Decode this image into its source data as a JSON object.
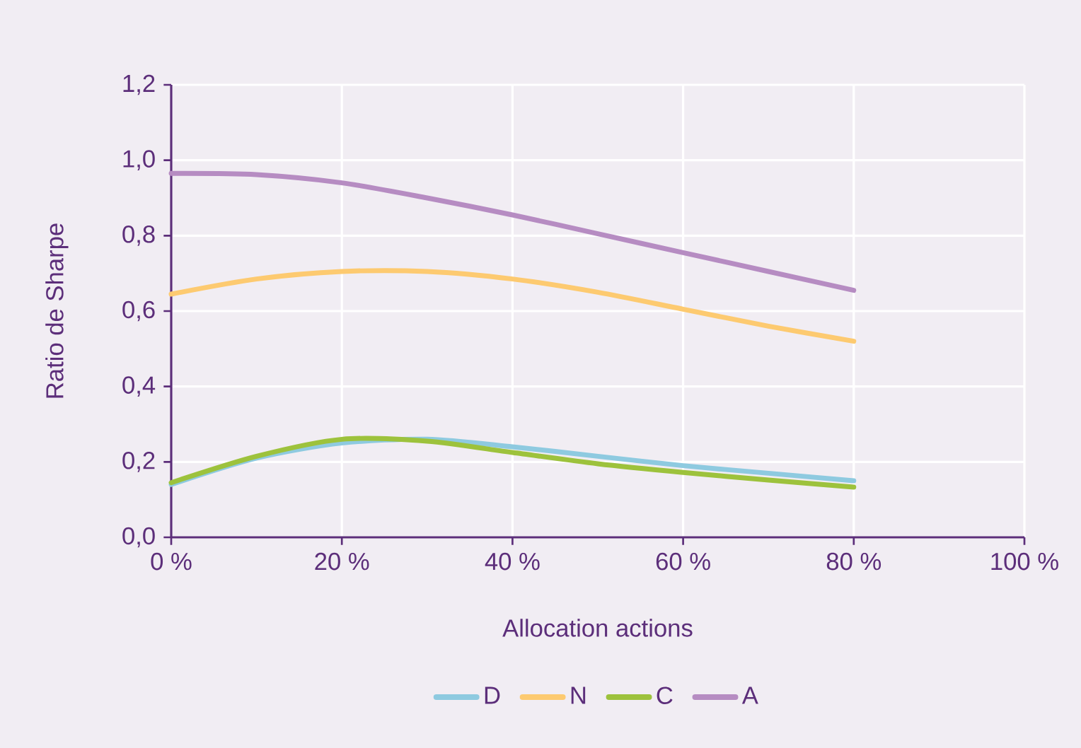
{
  "chart_data": {
    "type": "line",
    "xlabel": "Allocation actions",
    "ylabel": "Ratio de Sharpe",
    "x": [
      0,
      10,
      20,
      30,
      40,
      50,
      60,
      70,
      80
    ],
    "series": [
      {
        "name": "D",
        "color": "#8ecae0",
        "values": [
          0.14,
          0.21,
          0.25,
          0.26,
          0.24,
          0.215,
          0.19,
          0.17,
          0.15
        ]
      },
      {
        "name": "N",
        "color": "#fdca70",
        "values": [
          0.645,
          0.685,
          0.705,
          0.705,
          0.685,
          0.65,
          0.605,
          0.56,
          0.52
        ]
      },
      {
        "name": "C",
        "color": "#9dc23c",
        "values": [
          0.145,
          0.215,
          0.26,
          0.255,
          0.225,
          0.195,
          0.172,
          0.152,
          0.133
        ]
      },
      {
        "name": "A",
        "color": "#b68cc2",
        "values": [
          0.965,
          0.962,
          0.94,
          0.9,
          0.855,
          0.805,
          0.755,
          0.705,
          0.655
        ]
      }
    ],
    "xlim": [
      0,
      100
    ],
    "ylim": [
      0,
      1.2
    ],
    "xticks": [
      {
        "value": 0,
        "label": "0 %"
      },
      {
        "value": 20,
        "label": "20 %"
      },
      {
        "value": 40,
        "label": "40 %"
      },
      {
        "value": 60,
        "label": "60 %"
      },
      {
        "value": 80,
        "label": "80 %"
      },
      {
        "value": 100,
        "label": "100 %"
      }
    ],
    "yticks": [
      {
        "value": 0,
        "label": "0,0"
      },
      {
        "value": 0.2,
        "label": "0,2"
      },
      {
        "value": 0.4,
        "label": "0,4"
      },
      {
        "value": 0.6,
        "label": "0,6"
      },
      {
        "value": 0.8,
        "label": "0,8"
      },
      {
        "value": 1.0,
        "label": "1,0"
      },
      {
        "value": 1.2,
        "label": "1,2"
      }
    ],
    "grid": true,
    "legend": "bottom",
    "line_style": "solid",
    "marker": "none"
  }
}
